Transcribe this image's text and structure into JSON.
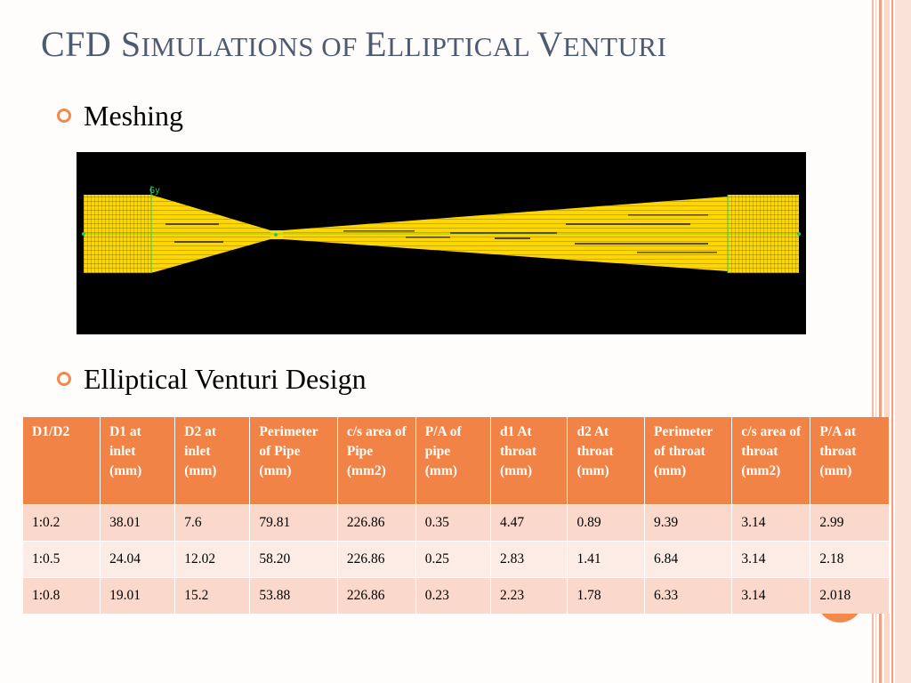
{
  "slide": {
    "title_first": "CFD S",
    "title_rest": "IMULATIONS OF ",
    "title_e": "E",
    "title_rest2": "LLIPTICAL ",
    "title_v": "V",
    "title_rest3": "ENTURI",
    "bullets": [
      "Meshing",
      "Elliptical Venturi Design"
    ]
  },
  "mesh_labels": {
    "gy": "Gy"
  },
  "colors": {
    "accent": "#f28346",
    "title": "#4d5b70",
    "mesh_fill": "#ffd700",
    "mesh_bg": "#000000",
    "mesh_marker": "#22cc66"
  },
  "table": {
    "headers": [
      [
        "D1/D2"
      ],
      [
        "D1 at inlet (mm)"
      ],
      [
        "D2  at inlet (mm)"
      ],
      [
        "Perimeter of Pipe (mm)"
      ],
      [
        "c/s area of Pipe (mm2)"
      ],
      [
        "P/A of pipe (mm)"
      ],
      [
        "d1 At throat (mm)"
      ],
      [
        "d2 At throat (mm)"
      ],
      [
        "Perimeter of throat (mm)"
      ],
      [
        "c/s area of throat (mm2)"
      ],
      [
        "P/A at throat (mm)"
      ]
    ],
    "rows": [
      [
        "1:0.2",
        "38.01",
        "7.6",
        "79.81",
        "226.86",
        "0.35",
        "4.47",
        "0.89",
        "9.39",
        "3.14",
        "2.99"
      ],
      [
        "1:0.5",
        "24.04",
        "12.02",
        "58.20",
        "226.86",
        "0.25",
        "2.83",
        "1.41",
        "6.84",
        "3.14",
        "2.18"
      ],
      [
        "1:0.8",
        "19.01",
        "15.2",
        "53.88",
        "226.86",
        "0.23",
        "2.23",
        "1.78",
        "6.33",
        "3.14",
        "2.018"
      ]
    ]
  }
}
